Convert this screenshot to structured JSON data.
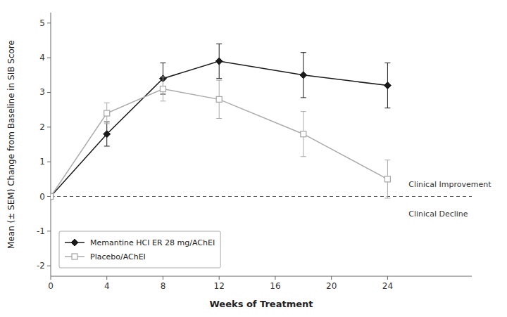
{
  "chart_data": {
    "type": "line",
    "xlabel": "Weeks of Treatment",
    "ylabel": "Mean (± SEM) Change from Baseline in SIB Score",
    "x": [
      0,
      4,
      8,
      12,
      18,
      24
    ],
    "series": [
      {
        "name": "Memantine HCI ER 28 mg/AChEI",
        "color": "#1a1a1a",
        "marker": "diamond",
        "values": [
          0.0,
          1.8,
          3.4,
          3.9,
          3.5,
          3.2
        ],
        "errors": [
          0.0,
          0.35,
          0.45,
          0.5,
          0.65,
          0.65
        ]
      },
      {
        "name": "Placebo/AChEI",
        "color": "#aaaaaa",
        "marker": "open-square",
        "values": [
          0.0,
          2.4,
          3.1,
          2.8,
          1.8,
          0.5
        ],
        "errors": [
          0.0,
          0.3,
          0.35,
          0.55,
          0.65,
          0.55
        ]
      }
    ],
    "reference_line": {
      "y": 0,
      "line_style": "dashed"
    },
    "annotations": [
      {
        "text": "Clinical Improvement",
        "x": 25.5,
        "y": 0.22
      },
      {
        "text": "Clinical Decline",
        "x": 25.5,
        "y": -0.35
      }
    ],
    "xlim": [
      0,
      30
    ],
    "ylim": [
      -2.3,
      5.3
    ],
    "xticks": [
      0,
      4,
      8,
      12,
      16,
      20,
      24
    ],
    "yticks": [
      -2,
      -1,
      0,
      1,
      2,
      3,
      4,
      5
    ],
    "grid": false,
    "legend": "lower left"
  }
}
